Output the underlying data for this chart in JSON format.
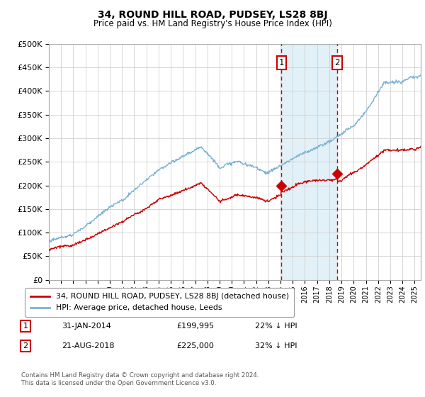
{
  "title": "34, ROUND HILL ROAD, PUDSEY, LS28 8BJ",
  "subtitle": "Price paid vs. HM Land Registry's House Price Index (HPI)",
  "ylim": [
    0,
    500000
  ],
  "yticks": [
    0,
    50000,
    100000,
    150000,
    200000,
    250000,
    300000,
    350000,
    400000,
    450000,
    500000
  ],
  "hpi_color": "#7ab3d4",
  "price_color": "#cc0000",
  "vline_color": "#cc0000",
  "shade_color": "#ddeef7",
  "marker1_x": 2014.08,
  "marker2_x": 2018.64,
  "legend_label1": "34, ROUND HILL ROAD, PUDSEY, LS28 8BJ (detached house)",
  "legend_label2": "HPI: Average price, detached house, Leeds",
  "note1_label": "1",
  "note1_date": "31-JAN-2014",
  "note1_price": "£199,995",
  "note1_hpi": "22% ↓ HPI",
  "note2_label": "2",
  "note2_date": "21-AUG-2018",
  "note2_price": "£225,000",
  "note2_hpi": "32% ↓ HPI",
  "footer": "Contains HM Land Registry data © Crown copyright and database right 2024.\nThis data is licensed under the Open Government Licence v3.0.",
  "xlim_start": 1995,
  "xlim_end": 2025.5
}
